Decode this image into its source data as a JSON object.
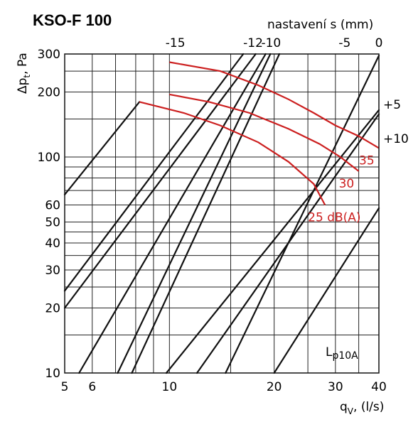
{
  "title": "KSO-F 100",
  "chart_data": {
    "type": "line",
    "xlabel": "q_V, (l/s)",
    "xlabel_main": "q",
    "xlabel_sub": "V",
    "xlabel_rest": ", (l/s)",
    "ylabel_main": "Δp",
    "ylabel_sub": "t",
    "ylabel_rest": ", Pa",
    "top_axis_label": "nastavení s (mm)",
    "x_scale": "log",
    "y_scale": "log",
    "xlim": [
      5,
      40
    ],
    "ylim": [
      10,
      300
    ],
    "grid": true,
    "x_ticks": [
      5,
      6,
      10,
      20,
      30,
      40
    ],
    "y_ticks": [
      10,
      20,
      30,
      40,
      50,
      60,
      100,
      200,
      300
    ],
    "x_minor_grid": [
      7,
      8,
      9,
      15,
      25,
      35
    ],
    "y_minor_grid": [
      15,
      25,
      35,
      45,
      70,
      80,
      90,
      150,
      250
    ],
    "annotation_lp": "L",
    "annotation_lp_sub": "p10A",
    "color_black": "#111111",
    "color_red": "#cc1f1f",
    "settings": [
      {
        "label": "-15",
        "points": [
          [
            5,
            67
          ],
          [
            8.2,
            180
          ]
        ]
      },
      {
        "label": "",
        "points": [
          [
            5,
            24
          ],
          [
            16.3,
            300
          ]
        ]
      },
      {
        "label": "",
        "points": [
          [
            5,
            20
          ],
          [
            17.7,
            300
          ]
        ]
      },
      {
        "label": "-12",
        "points": [
          [
            5.5,
            10
          ],
          [
            18.9,
            300
          ]
        ]
      },
      {
        "label": "-10",
        "points": [
          [
            7.1,
            10
          ],
          [
            19.5,
            300
          ]
        ]
      },
      {
        "label": "",
        "points": [
          [
            7.8,
            10
          ],
          [
            20.7,
            300
          ]
        ]
      },
      {
        "label": "",
        "points": [
          [
            9.8,
            10
          ],
          [
            40,
            165
          ]
        ]
      },
      {
        "label": "-5",
        "points": [
          [
            12,
            10
          ],
          [
            40,
            158
          ]
        ]
      },
      {
        "label": "0",
        "points": [
          [
            14.5,
            10
          ],
          [
            40,
            295
          ]
        ]
      },
      {
        "label": "",
        "points": [
          [
            20,
            10
          ],
          [
            40,
            58
          ]
        ]
      }
    ],
    "settings_top_labels": [
      {
        "label": "-15",
        "x": 10.4
      },
      {
        "label": "-12",
        "x": 17.4
      },
      {
        "label": "-10",
        "x": 19.6
      },
      {
        "label": "-5",
        "x": 31.9
      },
      {
        "label": "0",
        "x": 40
      }
    ],
    "settings_right_labels": [
      {
        "label": "+5",
        "y": 175
      },
      {
        "label": "+10",
        "y": 122
      }
    ],
    "noise_curves": [
      {
        "label": "35",
        "points": [
          [
            10,
            275
          ],
          [
            14,
            250
          ],
          [
            18,
            215
          ],
          [
            22,
            185
          ],
          [
            26,
            160
          ],
          [
            30,
            140
          ],
          [
            35,
            125
          ],
          [
            40,
            110
          ]
        ]
      },
      {
        "label": "30",
        "points": [
          [
            10,
            195
          ],
          [
            13,
            180
          ],
          [
            17,
            160
          ],
          [
            22,
            135
          ],
          [
            27,
            115
          ],
          [
            31,
            100
          ],
          [
            35,
            86
          ]
        ]
      },
      {
        "label": "25 dB(A)",
        "points": [
          [
            8.2,
            180
          ],
          [
            11,
            160
          ],
          [
            14,
            140
          ],
          [
            18,
            117
          ],
          [
            22,
            95
          ],
          [
            26,
            75
          ],
          [
            28,
            60
          ]
        ]
      }
    ]
  }
}
